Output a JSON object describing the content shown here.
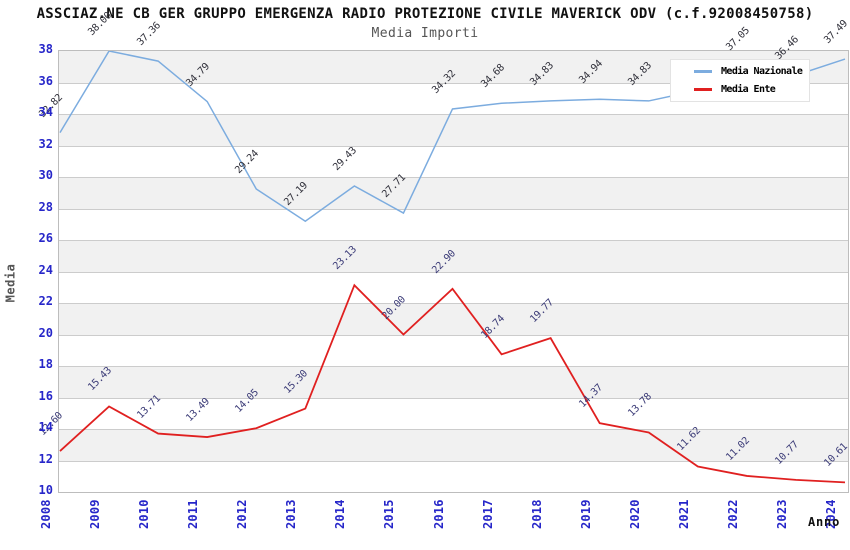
{
  "chart_data": {
    "type": "line",
    "title": "ASSCIAZ.NE CB GER GRUPPO EMERGENZA RADIO PROTEZIONE CIVILE MAVERICK ODV (c.f.92008450758)",
    "subtitle": "Media Importi",
    "xlabel": "Anno",
    "ylabel": "Media",
    "x": [
      2008,
      2009,
      2010,
      2011,
      2012,
      2013,
      2014,
      2015,
      2016,
      2017,
      2018,
      2019,
      2020,
      2021,
      2022,
      2023,
      2024
    ],
    "ylim": [
      10,
      38
    ],
    "ytick_step": 2,
    "y_ticks": [
      38,
      36,
      34,
      32,
      30,
      28,
      26,
      24,
      22,
      20,
      18,
      16,
      14,
      12,
      10
    ],
    "grid": "horizontal gridlines with alternating shaded bands",
    "legend_position": "top-right",
    "series": [
      {
        "name": "Media Nazionale",
        "color": "#7cacdf",
        "label_color": "#32323c",
        "values": [
          32.82,
          38.0,
          37.36,
          34.79,
          29.24,
          27.19,
          29.43,
          27.71,
          34.32,
          34.68,
          34.83,
          34.94,
          34.83,
          35.5,
          37.05,
          36.46,
          37.49
        ],
        "labels": [
          "32.82",
          "38.00",
          "37.36",
          "34.79",
          "29.24",
          "27.19",
          "29.43",
          "27.71",
          "34.32",
          "34.68",
          "34.83",
          "34.94",
          "34.83",
          null,
          "37.05",
          "36.46",
          "37.49"
        ]
      },
      {
        "name": "Media Ente",
        "color": "#e02020",
        "label_color": "#3c3c78",
        "values": [
          12.6,
          15.43,
          13.71,
          13.49,
          14.05,
          15.3,
          23.13,
          20.0,
          22.9,
          18.74,
          19.77,
          14.37,
          13.78,
          11.62,
          11.02,
          10.77,
          10.61
        ],
        "labels": [
          "12.60",
          "15.43",
          "13.71",
          "13.49",
          "14.05",
          "15.30",
          "23.13",
          "20.00",
          "22.90",
          "18.74",
          "19.77",
          "14.37",
          "13.78",
          "11.62",
          "11.02",
          "10.77",
          "10.61"
        ]
      }
    ],
    "colors": {
      "axis_tick_labels": "#2626c9",
      "subtitle_text": "#555555",
      "axis_title_text": "#555555"
    }
  }
}
